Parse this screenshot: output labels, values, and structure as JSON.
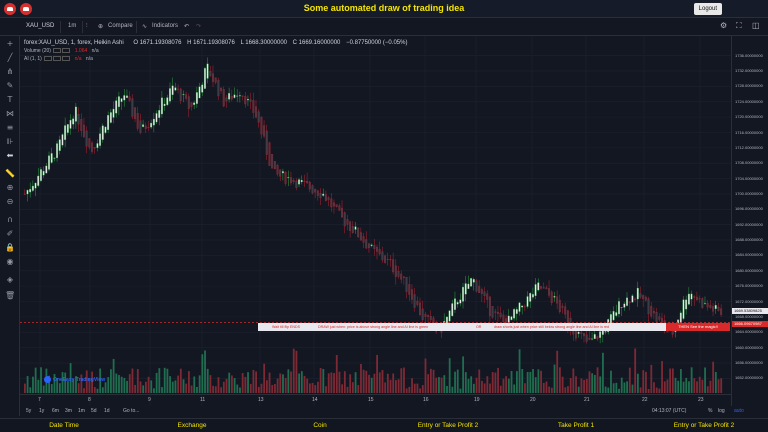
{
  "app": {
    "title": "Some automated draw of trading idea",
    "logout_label": "Logout"
  },
  "toolbar": {
    "symbol": "XAU_USD",
    "interval": "1m",
    "compare": "Compare",
    "indicators": "Indicators"
  },
  "legend": {
    "main": "forex:XAU_USD, 1, forex, Heikin Ashi",
    "o": "O 1671.19308076",
    "h": "H 1671.19308076",
    "l": "L 1668.30000000",
    "c": "C 1669.16000000",
    "chg": "−0.87750000 (−0.05%)",
    "volume_label": "Volume (20)",
    "volume_val": "1.064",
    "volume_na": "n/a",
    "ai_label": "AI (1, 1)",
    "ai_val": "n/a",
    "ai_na": "n/a"
  },
  "price_axis": {
    "ticks": [
      "1736.00000000",
      "1732.00000000",
      "1728.00000000",
      "1724.00000000",
      "1720.00000000",
      "1716.00000000",
      "1712.00000000",
      "1708.00000000",
      "1704.00000000",
      "1700.00000000",
      "1696.00000000",
      "1692.00000000",
      "1688.00000000",
      "1684.00000000",
      "1680.00000000",
      "1676.00000000",
      "1672.00000000",
      "1668.00000000",
      "1664.00000000",
      "1660.00000000",
      "1656.00000000",
      "1652.00000000"
    ],
    "current_high": "1669.53809825",
    "current_low": "1666.09670987"
  },
  "signal_bar": {
    "seg1": "Wait till flip ENDS",
    "seg2": "DRAW just when:  price is above strong angle line and AI line is green",
    "seg3": "OR",
    "seg4": "draw shorts just when price still below strong angle line and AI line is red",
    "end": "THEN See the magic!!"
  },
  "logo": "OneEasy TradingView",
  "time_axis": {
    "labels": [
      "7",
      "8",
      "9",
      "11",
      "13",
      "14",
      "15",
      "16",
      "19",
      "20",
      "21",
      "22",
      "23"
    ],
    "time": "04:13:07 (UTC)",
    "pct": "%",
    "log": "log",
    "auto": "auto"
  },
  "range_bar": {
    "items": [
      "5y",
      "1y",
      "6m",
      "3m",
      "1m",
      "5d",
      "1d",
      "Go to..."
    ]
  },
  "footer": {
    "items": [
      "Date Time",
      "Exchange",
      "Coin",
      "Entry or Take Profit 2",
      "Take Profit 1",
      "Entry or Take Profit 2"
    ]
  },
  "chart_data": {
    "type": "candlestick",
    "title": "forex:XAU_USD, 1, forex, Heikin Ashi",
    "ylim": [
      1650,
      1738
    ],
    "trend": [
      1700,
      1706,
      1712,
      1722,
      1711,
      1720,
      1726,
      1716,
      1722,
      1728,
      1722,
      1733,
      1724,
      1727,
      1720,
      1705,
      1704,
      1702,
      1700,
      1694,
      1690,
      1685,
      1682,
      1676,
      1668,
      1664,
      1672,
      1678,
      1670,
      1666,
      1671,
      1676,
      1672,
      1665,
      1661,
      1665,
      1672,
      1674,
      1668,
      1663,
      1675,
      1671,
      1669
    ],
    "signal_level": 1666.5
  }
}
